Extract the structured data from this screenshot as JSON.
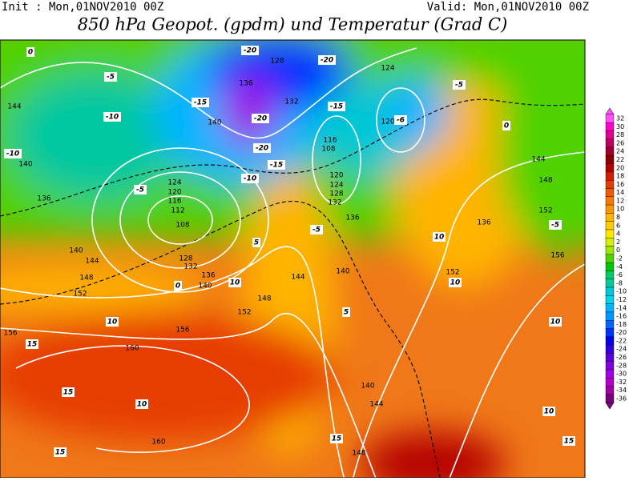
{
  "header": {
    "init": "Init : Mon,01NOV2010 00Z",
    "valid": "Valid: Mon,01NOV2010 00Z",
    "title": "850 hPa Geopot. (gpdm) und Temperatur (Grad C)"
  },
  "geopotential_labels": [
    "144",
    "140",
    "136",
    "140",
    "144",
    "148",
    "152",
    "156",
    "160",
    "160",
    "156",
    "152",
    "148",
    "144",
    "140",
    "136",
    "132",
    "128",
    "124",
    "120",
    "116",
    "108",
    "120",
    "124",
    "128",
    "132",
    "136",
    "140",
    "108",
    "112",
    "116",
    "120",
    "124",
    "128",
    "132",
    "136",
    "140",
    "140",
    "144",
    "148",
    "152",
    "156",
    "152",
    "148",
    "144",
    "136"
  ],
  "temperature_labels": [
    "10",
    "15",
    "15",
    "10",
    "10",
    "10",
    "10",
    "10",
    "10",
    "15",
    "15",
    "15",
    "5",
    "5",
    "0",
    "0",
    "0",
    "-5",
    "-5",
    "-5",
    "-5",
    "-5",
    "-10",
    "-10",
    "-10",
    "-15",
    "-15",
    "-15",
    "-20",
    "-20",
    "-20",
    "-20",
    "-6"
  ],
  "colorbar": {
    "ticks": [
      32,
      30,
      28,
      26,
      24,
      22,
      20,
      18,
      16,
      14,
      12,
      10,
      8,
      6,
      4,
      2,
      0,
      -2,
      -4,
      -6,
      -8,
      -10,
      -12,
      -14,
      -16,
      -18,
      -20,
      -22,
      -24,
      -26,
      -28,
      -30,
      -32,
      -34,
      -36
    ],
    "colors": [
      "#ff50ff",
      "#ff00cc",
      "#e00090",
      "#c00060",
      "#a00030",
      "#8c0000",
      "#b40000",
      "#d21e00",
      "#e63c00",
      "#f05a00",
      "#f57800",
      "#fa9600",
      "#ffb400",
      "#ffcc00",
      "#ffe600",
      "#d2f000",
      "#a0e600",
      "#50d200",
      "#00c800",
      "#00c864",
      "#00c8a0",
      "#00c8d2",
      "#00d2f0",
      "#00b4ff",
      "#0096ff",
      "#0064ff",
      "#0032ff",
      "#0000f0",
      "#3200dc",
      "#5a00dc",
      "#8200dc",
      "#a000e6",
      "#b400c8",
      "#a000a0",
      "#780078"
    ]
  }
}
